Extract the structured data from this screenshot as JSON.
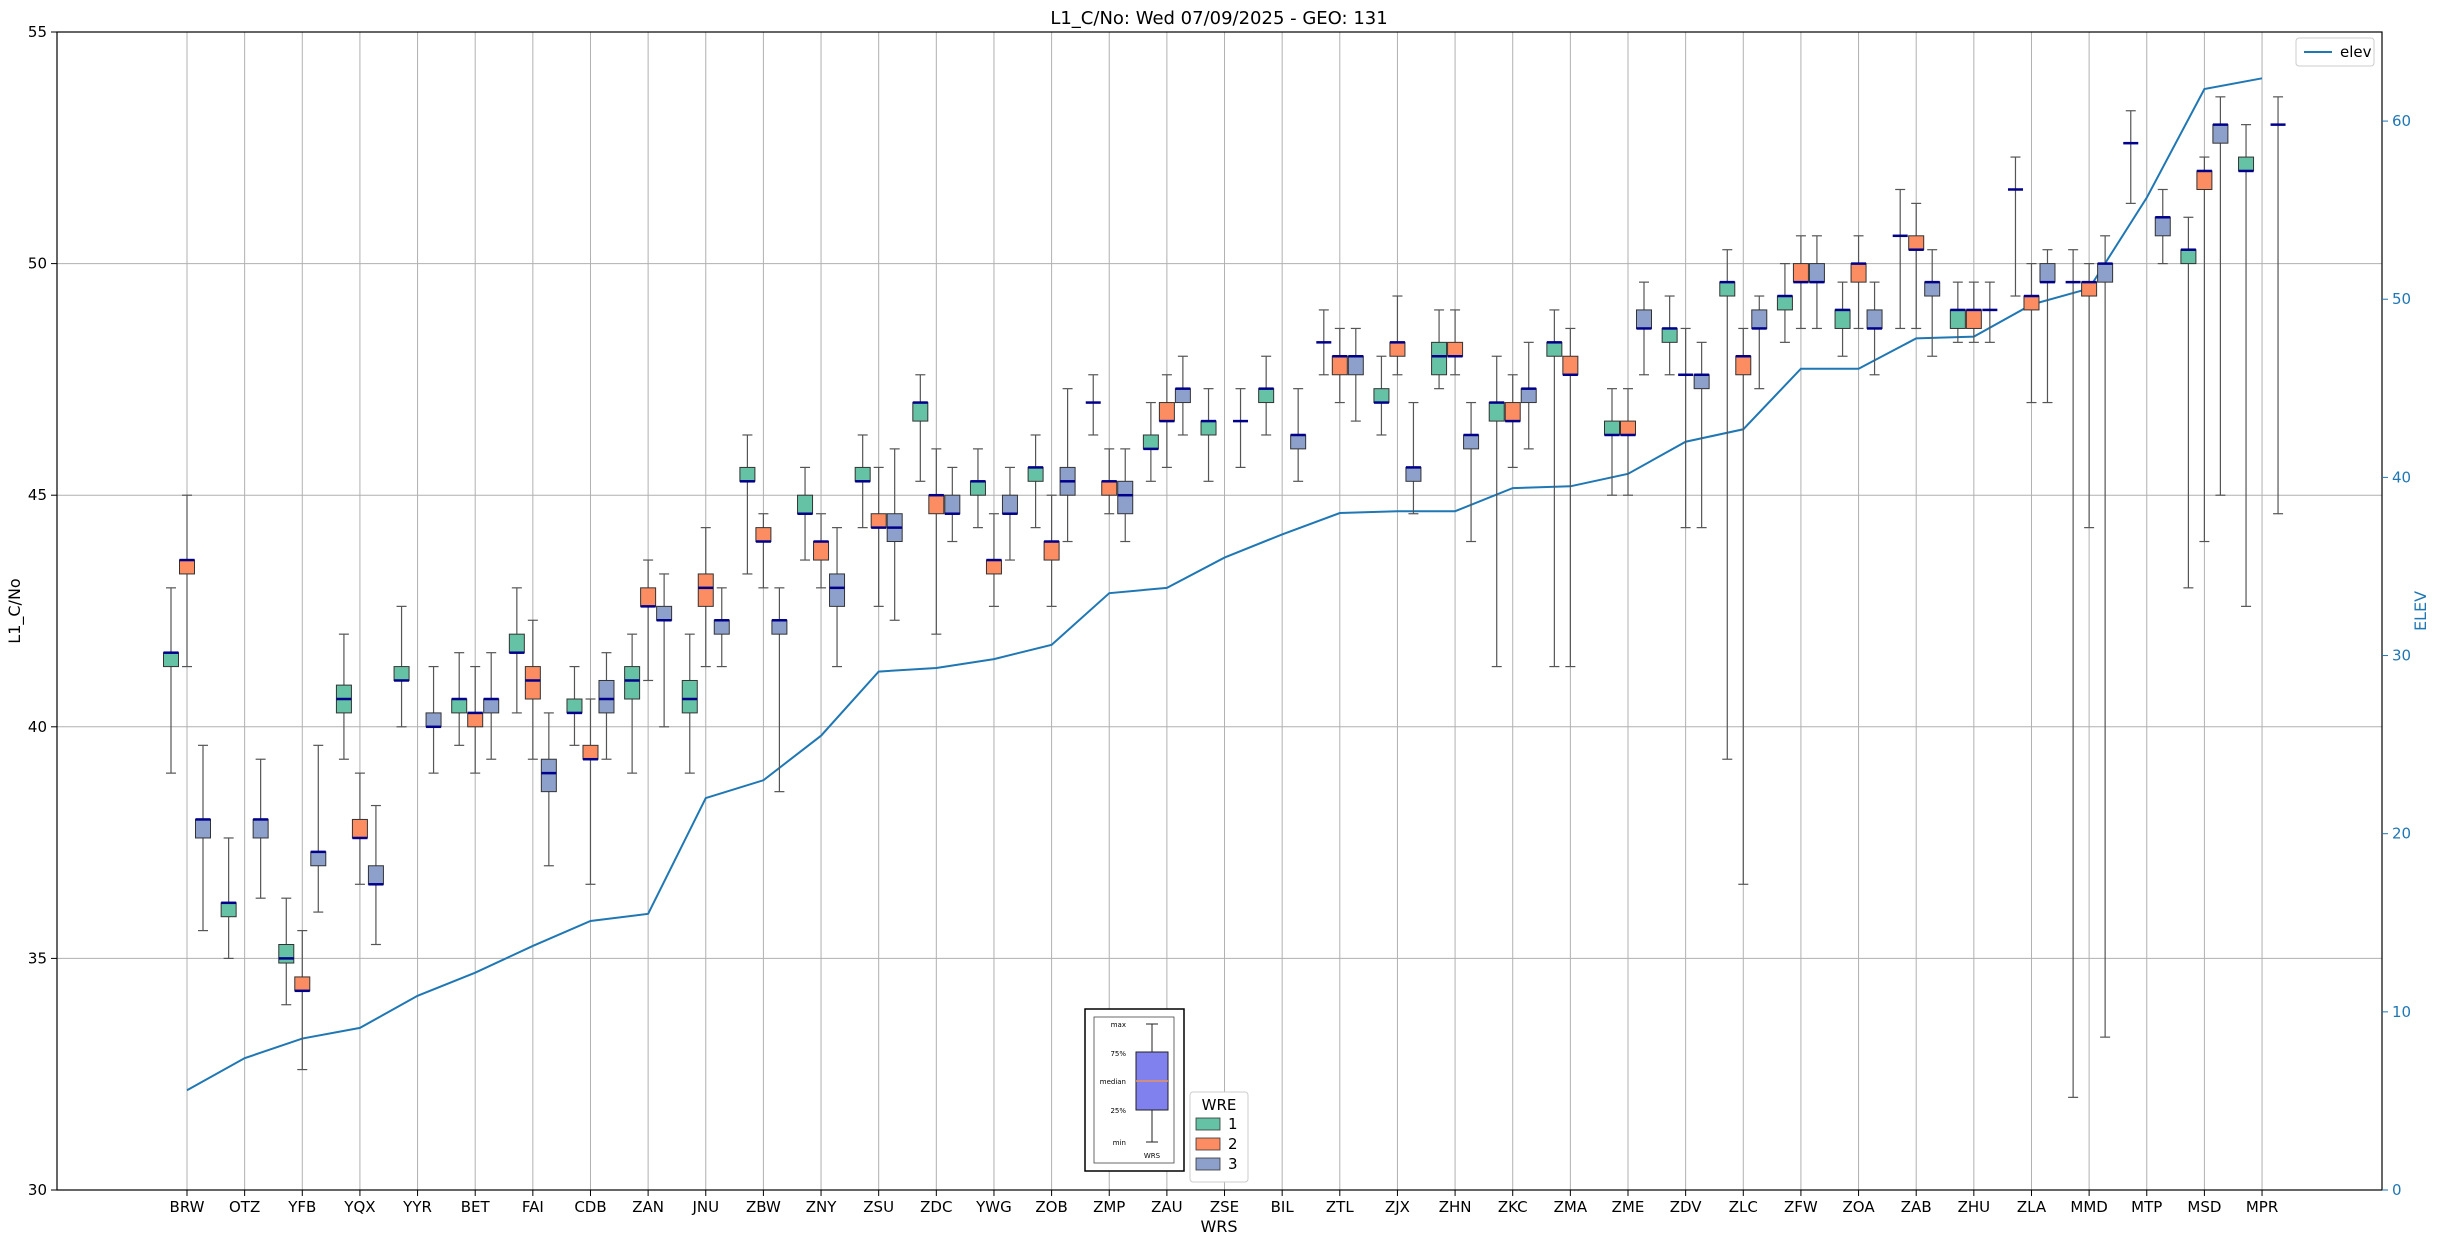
{
  "chart_data": {
    "type": "box",
    "title": "L1_C/No: Wed 07/09/2025 - GEO: 131",
    "xlabel": "WRS",
    "ylabel": "L1_C/No",
    "y2label": "ELEV",
    "ylim": [
      30,
      55
    ],
    "y2lim": [
      0,
      65
    ],
    "yticks": [
      30,
      35,
      40,
      45,
      50,
      55
    ],
    "y2ticks": [
      0,
      10,
      20,
      30,
      40,
      50,
      60
    ],
    "grid": true,
    "categories": [
      "BRW",
      "OTZ",
      "YFB",
      "YQX",
      "YYR",
      "BET",
      "FAI",
      "CDB",
      "ZAN",
      "JNU",
      "ZBW",
      "ZNY",
      "ZSU",
      "ZDC",
      "YWG",
      "ZOB",
      "ZMP",
      "ZAU",
      "ZSE",
      "BIL",
      "ZTL",
      "ZJX",
      "ZHN",
      "ZKC",
      "ZMA",
      "ZME",
      "ZDV",
      "ZLC",
      "ZFW",
      "ZOA",
      "ZAB",
      "ZHU",
      "ZLA",
      "MMD",
      "MTP",
      "MSD",
      "MPR"
    ],
    "colors": {
      "1": "#66c2a5",
      "2": "#fc8d62",
      "3": "#8da0cb",
      "elev": "#1f77b4",
      "median": "#00008b"
    },
    "wre_legend": {
      "title": "WRE",
      "entries": [
        "1",
        "2",
        "3"
      ]
    },
    "elev_legend": "elev",
    "inset_key": {
      "labels": [
        "max",
        "75%",
        "median",
        "25%",
        "min"
      ],
      "caption": "WRS"
    },
    "elev": [
      5.6,
      7.4,
      8.5,
      9.1,
      10.9,
      12.2,
      13.7,
      15.1,
      15.5,
      22.0,
      23.0,
      25.5,
      29.1,
      29.3,
      29.8,
      30.6,
      33.5,
      33.8,
      35.5,
      36.8,
      38.0,
      38.1,
      38.1,
      39.4,
      39.5,
      40.2,
      42.0,
      42.7,
      46.1,
      46.1,
      47.8,
      47.9,
      49.7,
      50.6,
      55.7,
      61.8,
      62.4
    ],
    "series": [
      {
        "name": "1",
        "boxes": [
          {
            "x": 0,
            "min": 39.0,
            "q1": 41.3,
            "med": 41.6,
            "q3": 41.6,
            "max": 43.0
          },
          {
            "x": 1,
            "min": 35.0,
            "q1": 35.9,
            "med": 36.2,
            "q3": 36.2,
            "max": 37.6
          },
          {
            "x": 2,
            "min": 34.0,
            "q1": 34.9,
            "med": 35.0,
            "q3": 35.3,
            "max": 36.3
          },
          {
            "x": 3,
            "min": 39.3,
            "q1": 40.3,
            "med": 40.6,
            "q3": 40.9,
            "max": 42.0
          },
          {
            "x": 4,
            "min": 40.0,
            "q1": 41.0,
            "med": 41.0,
            "q3": 41.3,
            "max": 42.6
          },
          {
            "x": 5,
            "min": 39.6,
            "q1": 40.3,
            "med": 40.6,
            "q3": 40.6,
            "max": 41.6
          },
          {
            "x": 6,
            "min": 40.3,
            "q1": 41.6,
            "med": 41.6,
            "q3": 42.0,
            "max": 43.0
          },
          {
            "x": 7,
            "min": 39.6,
            "q1": 40.3,
            "med": 40.3,
            "q3": 40.6,
            "max": 41.3
          },
          {
            "x": 8,
            "min": 39.0,
            "q1": 40.6,
            "med": 41.0,
            "q3": 41.3,
            "max": 42.0
          },
          {
            "x": 9,
            "min": 39.0,
            "q1": 40.3,
            "med": 40.6,
            "q3": 41.0,
            "max": 42.0
          },
          {
            "x": 10,
            "min": 43.3,
            "q1": 45.3,
            "med": 45.3,
            "q3": 45.6,
            "max": 46.3
          },
          {
            "x": 11,
            "min": 43.6,
            "q1": 44.6,
            "med": 44.6,
            "q3": 45.0,
            "max": 45.6
          },
          {
            "x": 12,
            "min": 44.3,
            "q1": 45.3,
            "med": 45.3,
            "q3": 45.6,
            "max": 46.3
          },
          {
            "x": 13,
            "min": 45.3,
            "q1": 46.6,
            "med": 47.0,
            "q3": 47.0,
            "max": 47.6
          },
          {
            "x": 14,
            "min": 44.3,
            "q1": 45.0,
            "med": 45.3,
            "q3": 45.3,
            "max": 46.0
          },
          {
            "x": 15,
            "min": 44.3,
            "q1": 45.3,
            "med": 45.6,
            "q3": 45.6,
            "max": 46.3
          },
          {
            "x": 16,
            "min": 46.3,
            "q1": 47.0,
            "med": 47.0,
            "q3": 47.0,
            "max": 47.6
          },
          {
            "x": 17,
            "min": 45.3,
            "q1": 46.0,
            "med": 46.0,
            "q3": 46.3,
            "max": 47.0
          },
          {
            "x": 18,
            "min": 45.3,
            "q1": 46.3,
            "med": 46.6,
            "q3": 46.6,
            "max": 47.3
          },
          {
            "x": 19,
            "min": 46.3,
            "q1": 47.0,
            "med": 47.3,
            "q3": 47.3,
            "max": 48.0
          },
          {
            "x": 20,
            "min": 47.6,
            "q1": 48.3,
            "med": 48.3,
            "q3": 48.3,
            "max": 49.0
          },
          {
            "x": 21,
            "min": 46.3,
            "q1": 47.0,
            "med": 47.0,
            "q3": 47.3,
            "max": 48.0
          },
          {
            "x": 22,
            "min": 47.3,
            "q1": 47.6,
            "med": 48.0,
            "q3": 48.3,
            "max": 49.0
          },
          {
            "x": 23,
            "min": 41.3,
            "q1": 46.6,
            "med": 47.0,
            "q3": 47.0,
            "max": 48.0
          },
          {
            "x": 24,
            "min": 41.3,
            "q1": 48.0,
            "med": 48.3,
            "q3": 48.3,
            "max": 49.0
          },
          {
            "x": 25,
            "min": 45.0,
            "q1": 46.3,
            "med": 46.3,
            "q3": 46.6,
            "max": 47.3
          },
          {
            "x": 26,
            "min": 47.6,
            "q1": 48.3,
            "med": 48.6,
            "q3": 48.6,
            "max": 49.3
          },
          {
            "x": 27,
            "min": 39.3,
            "q1": 49.3,
            "med": 49.6,
            "q3": 49.6,
            "max": 50.3
          },
          {
            "x": 28,
            "min": 48.3,
            "q1": 49.0,
            "med": 49.3,
            "q3": 49.3,
            "max": 50.0
          },
          {
            "x": 29,
            "min": 48.0,
            "q1": 48.6,
            "med": 49.0,
            "q3": 49.0,
            "max": 49.6
          },
          {
            "x": 30,
            "min": 48.6,
            "q1": 50.6,
            "med": 50.6,
            "q3": 50.6,
            "max": 51.6
          },
          {
            "x": 31,
            "min": 48.3,
            "q1": 48.6,
            "med": 49.0,
            "q3": 49.0,
            "max": 49.6
          },
          {
            "x": 32,
            "min": 49.3,
            "q1": 51.6,
            "med": 51.6,
            "q3": 51.6,
            "max": 52.3
          },
          {
            "x": 33,
            "min": 32.0,
            "q1": 49.6,
            "med": 49.6,
            "q3": 49.6,
            "max": 50.3
          },
          {
            "x": 34,
            "min": 51.3,
            "q1": 52.6,
            "med": 52.6,
            "q3": 52.6,
            "max": 53.3
          },
          {
            "x": 35,
            "min": 43.0,
            "q1": 50.0,
            "med": 50.3,
            "q3": 50.3,
            "max": 51.0
          },
          {
            "x": 36,
            "min": 42.6,
            "q1": 52.0,
            "med": 52.0,
            "q3": 52.3,
            "max": 53.0
          }
        ]
      },
      {
        "name": "2",
        "boxes": [
          {
            "x": 0,
            "min": 41.3,
            "q1": 43.3,
            "med": 43.6,
            "q3": 43.6,
            "max": 45.0
          },
          {
            "x": 2,
            "min": 32.6,
            "q1": 34.3,
            "med": 34.3,
            "q3": 34.6,
            "max": 35.6
          },
          {
            "x": 3,
            "min": 36.6,
            "q1": 37.6,
            "med": 37.6,
            "q3": 38.0,
            "max": 39.0
          },
          {
            "x": 5,
            "min": 39.0,
            "q1": 40.0,
            "med": 40.3,
            "q3": 40.3,
            "max": 41.3
          },
          {
            "x": 6,
            "min": 39.3,
            "q1": 40.6,
            "med": 41.0,
            "q3": 41.3,
            "max": 42.3
          },
          {
            "x": 7,
            "min": 36.6,
            "q1": 39.3,
            "med": 39.3,
            "q3": 39.6,
            "max": 40.6
          },
          {
            "x": 8,
            "min": 41.0,
            "q1": 42.6,
            "med": 42.6,
            "q3": 43.0,
            "max": 43.6
          },
          {
            "x": 9,
            "min": 41.3,
            "q1": 42.6,
            "med": 43.0,
            "q3": 43.3,
            "max": 44.3
          },
          {
            "x": 10,
            "min": 43.0,
            "q1": 44.0,
            "med": 44.0,
            "q3": 44.3,
            "max": 44.6
          },
          {
            "x": 11,
            "min": 43.0,
            "q1": 43.6,
            "med": 44.0,
            "q3": 44.0,
            "max": 44.6
          },
          {
            "x": 12,
            "min": 42.6,
            "q1": 44.3,
            "med": 44.3,
            "q3": 44.6,
            "max": 45.6
          },
          {
            "x": 13,
            "min": 42.0,
            "q1": 44.6,
            "med": 45.0,
            "q3": 45.0,
            "max": 46.0
          },
          {
            "x": 14,
            "min": 42.6,
            "q1": 43.3,
            "med": 43.6,
            "q3": 43.6,
            "max": 44.6
          },
          {
            "x": 15,
            "min": 42.6,
            "q1": 43.6,
            "med": 44.0,
            "q3": 44.0,
            "max": 45.0
          },
          {
            "x": 16,
            "min": 44.6,
            "q1": 45.0,
            "med": 45.3,
            "q3": 45.3,
            "max": 46.0
          },
          {
            "x": 17,
            "min": 45.6,
            "q1": 46.6,
            "med": 46.6,
            "q3": 47.0,
            "max": 47.6
          },
          {
            "x": 20,
            "min": 47.0,
            "q1": 47.6,
            "med": 48.0,
            "q3": 48.0,
            "max": 48.6
          },
          {
            "x": 21,
            "min": 47.6,
            "q1": 48.0,
            "med": 48.3,
            "q3": 48.3,
            "max": 49.3
          },
          {
            "x": 22,
            "min": 47.6,
            "q1": 48.0,
            "med": 48.0,
            "q3": 48.3,
            "max": 49.0
          },
          {
            "x": 23,
            "min": 45.6,
            "q1": 46.6,
            "med": 46.6,
            "q3": 47.0,
            "max": 47.6
          },
          {
            "x": 24,
            "min": 41.3,
            "q1": 47.6,
            "med": 47.6,
            "q3": 48.0,
            "max": 48.6
          },
          {
            "x": 25,
            "min": 45.0,
            "q1": 46.3,
            "med": 46.3,
            "q3": 46.6,
            "max": 47.3
          },
          {
            "x": 26,
            "min": 44.3,
            "q1": 47.6,
            "med": 47.6,
            "q3": 47.6,
            "max": 48.6
          },
          {
            "x": 27,
            "min": 36.6,
            "q1": 47.6,
            "med": 48.0,
            "q3": 48.0,
            "max": 48.6
          },
          {
            "x": 28,
            "min": 48.6,
            "q1": 49.6,
            "med": 49.6,
            "q3": 50.0,
            "max": 50.6
          },
          {
            "x": 29,
            "min": 48.6,
            "q1": 49.6,
            "med": 50.0,
            "q3": 50.0,
            "max": 50.6
          },
          {
            "x": 30,
            "min": 48.6,
            "q1": 50.3,
            "med": 50.3,
            "q3": 50.6,
            "max": 51.3
          },
          {
            "x": 31,
            "min": 48.3,
            "q1": 48.6,
            "med": 49.0,
            "q3": 49.0,
            "max": 49.6
          },
          {
            "x": 32,
            "min": 47.0,
            "q1": 49.0,
            "med": 49.3,
            "q3": 49.3,
            "max": 50.0
          },
          {
            "x": 33,
            "min": 44.3,
            "q1": 49.3,
            "med": 49.6,
            "q3": 49.6,
            "max": 50.0
          },
          {
            "x": 35,
            "min": 44.0,
            "q1": 51.6,
            "med": 52.0,
            "q3": 52.0,
            "max": 52.3
          }
        ]
      },
      {
        "name": "3",
        "boxes": [
          {
            "x": 0,
            "min": 35.6,
            "q1": 37.6,
            "med": 38.0,
            "q3": 38.0,
            "max": 39.6
          },
          {
            "x": 1,
            "min": 36.3,
            "q1": 37.6,
            "med": 38.0,
            "q3": 38.0,
            "max": 39.3
          },
          {
            "x": 2,
            "min": 36.0,
            "q1": 37.0,
            "med": 37.3,
            "q3": 37.3,
            "max": 39.6
          },
          {
            "x": 3,
            "min": 35.3,
            "q1": 36.6,
            "med": 36.6,
            "q3": 37.0,
            "max": 38.3
          },
          {
            "x": 4,
            "min": 39.0,
            "q1": 40.0,
            "med": 40.0,
            "q3": 40.3,
            "max": 41.3
          },
          {
            "x": 5,
            "min": 39.3,
            "q1": 40.3,
            "med": 40.6,
            "q3": 40.6,
            "max": 41.6
          },
          {
            "x": 6,
            "min": 37.0,
            "q1": 38.6,
            "med": 39.0,
            "q3": 39.3,
            "max": 40.3
          },
          {
            "x": 7,
            "min": 39.3,
            "q1": 40.3,
            "med": 40.6,
            "q3": 41.0,
            "max": 41.6
          },
          {
            "x": 8,
            "min": 40.0,
            "q1": 42.3,
            "med": 42.3,
            "q3": 42.6,
            "max": 43.3
          },
          {
            "x": 9,
            "min": 41.3,
            "q1": 42.0,
            "med": 42.3,
            "q3": 42.3,
            "max": 43.0
          },
          {
            "x": 10,
            "min": 38.6,
            "q1": 42.0,
            "med": 42.3,
            "q3": 42.3,
            "max": 43.0
          },
          {
            "x": 11,
            "min": 41.3,
            "q1": 42.6,
            "med": 43.0,
            "q3": 43.3,
            "max": 44.3
          },
          {
            "x": 12,
            "min": 42.3,
            "q1": 44.0,
            "med": 44.3,
            "q3": 44.6,
            "max": 46.0
          },
          {
            "x": 13,
            "min": 44.0,
            "q1": 44.6,
            "med": 44.6,
            "q3": 45.0,
            "max": 45.6
          },
          {
            "x": 14,
            "min": 43.6,
            "q1": 44.6,
            "med": 44.6,
            "q3": 45.0,
            "max": 45.6
          },
          {
            "x": 15,
            "min": 44.0,
            "q1": 45.0,
            "med": 45.3,
            "q3": 45.6,
            "max": 47.3
          },
          {
            "x": 16,
            "min": 44.0,
            "q1": 44.6,
            "med": 45.0,
            "q3": 45.3,
            "max": 46.0
          },
          {
            "x": 17,
            "min": 46.3,
            "q1": 47.0,
            "med": 47.3,
            "q3": 47.3,
            "max": 48.0
          },
          {
            "x": 18,
            "min": 45.6,
            "q1": 46.6,
            "med": 46.6,
            "q3": 46.6,
            "max": 47.3
          },
          {
            "x": 19,
            "min": 45.3,
            "q1": 46.0,
            "med": 46.3,
            "q3": 46.3,
            "max": 47.3
          },
          {
            "x": 20,
            "min": 46.6,
            "q1": 47.6,
            "med": 48.0,
            "q3": 48.0,
            "max": 48.6
          },
          {
            "x": 21,
            "min": 44.6,
            "q1": 45.3,
            "med": 45.6,
            "q3": 45.6,
            "max": 47.0
          },
          {
            "x": 22,
            "min": 44.0,
            "q1": 46.0,
            "med": 46.3,
            "q3": 46.3,
            "max": 47.0
          },
          {
            "x": 23,
            "min": 46.0,
            "q1": 47.0,
            "med": 47.3,
            "q3": 47.3,
            "max": 48.3
          },
          {
            "x": 25,
            "min": 47.6,
            "q1": 48.6,
            "med": 48.6,
            "q3": 49.0,
            "max": 49.6
          },
          {
            "x": 26,
            "min": 44.3,
            "q1": 47.3,
            "med": 47.6,
            "q3": 47.6,
            "max": 48.3
          },
          {
            "x": 27,
            "min": 47.3,
            "q1": 48.6,
            "med": 48.6,
            "q3": 49.0,
            "max": 49.3
          },
          {
            "x": 28,
            "min": 48.6,
            "q1": 49.6,
            "med": 49.6,
            "q3": 50.0,
            "max": 50.6
          },
          {
            "x": 29,
            "min": 47.6,
            "q1": 48.6,
            "med": 48.6,
            "q3": 49.0,
            "max": 49.6
          },
          {
            "x": 30,
            "min": 48.0,
            "q1": 49.3,
            "med": 49.6,
            "q3": 49.6,
            "max": 50.3
          },
          {
            "x": 31,
            "min": 48.3,
            "q1": 49.0,
            "med": 49.0,
            "q3": 49.0,
            "max": 49.6
          },
          {
            "x": 32,
            "min": 47.0,
            "q1": 49.6,
            "med": 49.6,
            "q3": 50.0,
            "max": 50.3
          },
          {
            "x": 33,
            "min": 33.3,
            "q1": 49.6,
            "med": 50.0,
            "q3": 50.0,
            "max": 50.6
          },
          {
            "x": 34,
            "min": 50.0,
            "q1": 50.6,
            "med": 51.0,
            "q3": 51.0,
            "max": 51.6
          },
          {
            "x": 35,
            "min": 45.0,
            "q1": 52.6,
            "med": 53.0,
            "q3": 53.0,
            "max": 53.6
          },
          {
            "x": 36,
            "min": 44.6,
            "q1": 53.0,
            "med": 53.0,
            "q3": 53.0,
            "max": 53.6
          }
        ]
      }
    ]
  }
}
